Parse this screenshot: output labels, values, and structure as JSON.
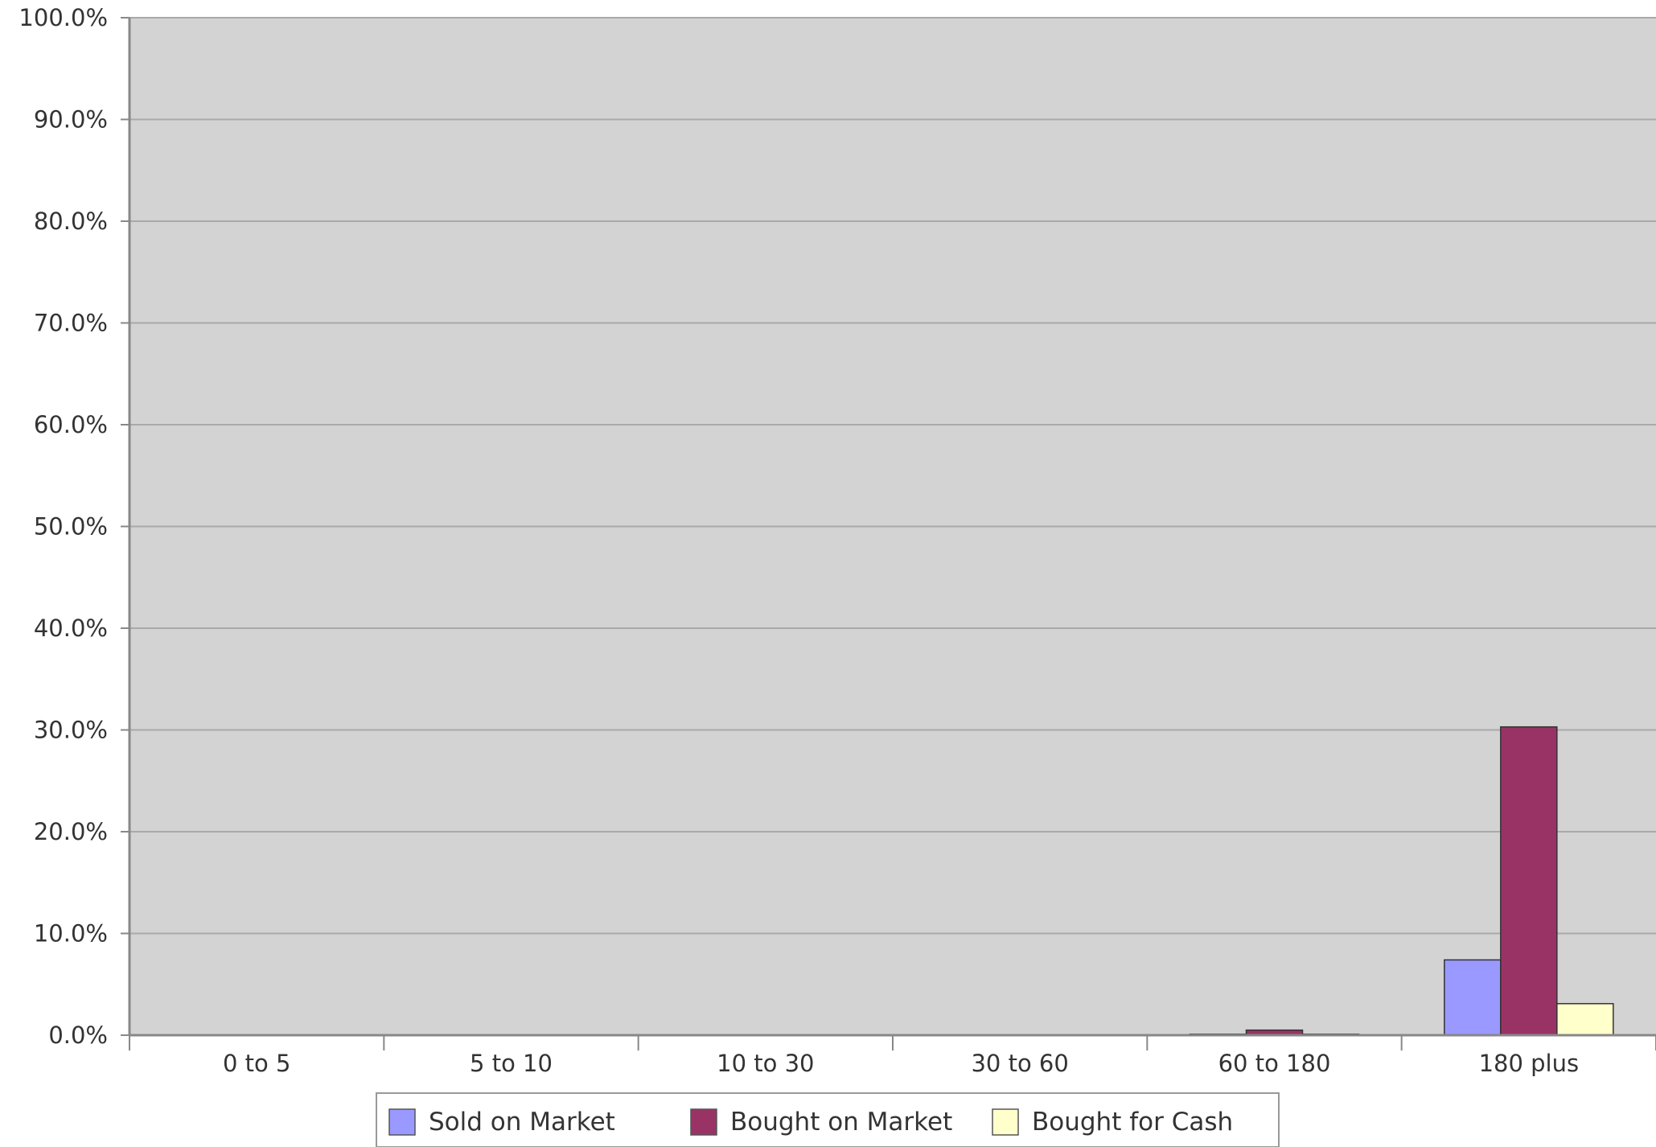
{
  "chart_data": {
    "type": "bar",
    "title": "",
    "xlabel": "",
    "ylabel": "",
    "categories": [
      "0 to 5",
      "5 to 10",
      "10 to 30",
      "30 to 60",
      "60 to 180",
      "180 plus"
    ],
    "series": [
      {
        "name": "Sold on Market",
        "color": "#9999ff",
        "values": [
          0.0,
          0.0,
          0.0,
          0.0,
          0.1,
          7.4
        ]
      },
      {
        "name": "Bought on Market",
        "color": "#993366",
        "values": [
          0.0,
          0.0,
          0.0,
          0.0,
          0.5,
          30.3
        ]
      },
      {
        "name": "Bought for Cash",
        "color": "#ffffcc",
        "values": [
          0.0,
          0.0,
          0.0,
          0.0,
          0.1,
          3.1
        ]
      }
    ],
    "ylim": [
      0,
      100
    ],
    "y_ticks": [
      "0.0%",
      "10.0%",
      "20.0%",
      "30.0%",
      "40.0%",
      "50.0%",
      "60.0%",
      "70.0%",
      "80.0%",
      "90.0%",
      "100.0%"
    ],
    "grid": true,
    "plot_background": "#d3d3d3",
    "legend_position": "bottom"
  }
}
